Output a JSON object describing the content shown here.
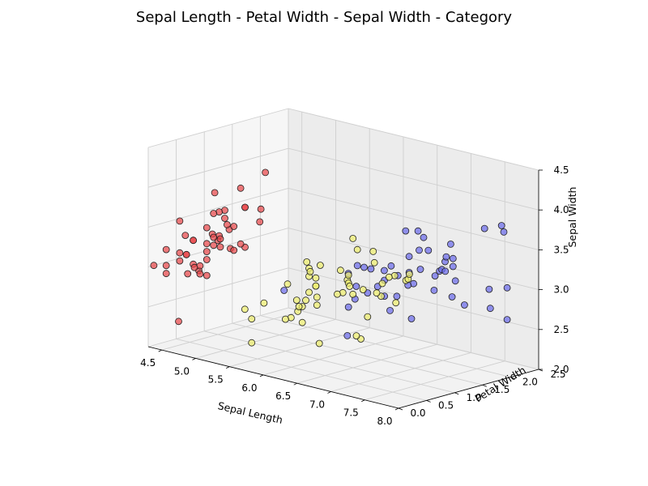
{
  "chart_data": {
    "type": "scatter3d",
    "title": "Sepal Length - Petal Width - Sepal Width - Category",
    "xlabel": "Sepal Length",
    "ylabel": "Petal Width",
    "zlabel": "Sepal Width",
    "xlim": [
      4.3,
      8.0
    ],
    "ylim": [
      0.0,
      2.5
    ],
    "zlim": [
      2.0,
      4.5
    ],
    "xticks": [
      "4.5",
      "5.0",
      "5.5",
      "6.0",
      "6.5",
      "7.0",
      "7.5",
      "8.0"
    ],
    "yticks": [
      "0.0",
      "0.5",
      "1.0",
      "1.5",
      "2.0",
      "2.5"
    ],
    "zticks": [
      "2.0",
      "2.5",
      "3.0",
      "3.5",
      "4.0",
      "4.5"
    ],
    "grid": true,
    "series": [
      {
        "color": "#e8474a",
        "points": [
          [
            5.1,
            0.2,
            3.5
          ],
          [
            4.9,
            0.2,
            3.0
          ],
          [
            4.7,
            0.2,
            3.2
          ],
          [
            4.6,
            0.2,
            3.1
          ],
          [
            5.0,
            0.2,
            3.6
          ],
          [
            5.4,
            0.4,
            3.9
          ],
          [
            4.6,
            0.3,
            3.4
          ],
          [
            5.0,
            0.2,
            3.4
          ],
          [
            4.4,
            0.2,
            2.9
          ],
          [
            4.9,
            0.1,
            3.1
          ],
          [
            5.4,
            0.2,
            3.7
          ],
          [
            4.8,
            0.2,
            3.4
          ],
          [
            4.8,
            0.1,
            3.0
          ],
          [
            4.3,
            0.1,
            3.0
          ],
          [
            5.8,
            0.2,
            4.0
          ],
          [
            5.7,
            0.4,
            4.4
          ],
          [
            5.4,
            0.4,
            3.9
          ],
          [
            5.1,
            0.3,
            3.5
          ],
          [
            5.7,
            0.3,
            3.8
          ],
          [
            5.1,
            0.3,
            3.8
          ],
          [
            5.4,
            0.2,
            3.4
          ],
          [
            5.1,
            0.4,
            3.7
          ],
          [
            4.6,
            0.2,
            3.6
          ],
          [
            5.1,
            0.5,
            3.3
          ],
          [
            4.8,
            0.2,
            3.4
          ],
          [
            5.0,
            0.2,
            3.0
          ],
          [
            5.0,
            0.4,
            3.4
          ],
          [
            5.2,
            0.2,
            3.5
          ],
          [
            5.2,
            0.2,
            3.4
          ],
          [
            4.7,
            0.2,
            3.2
          ],
          [
            4.8,
            0.2,
            3.1
          ],
          [
            5.4,
            0.4,
            3.4
          ],
          [
            5.2,
            0.1,
            4.1
          ],
          [
            5.5,
            0.2,
            4.2
          ],
          [
            4.9,
            0.2,
            3.1
          ],
          [
            5.0,
            0.2,
            3.2
          ],
          [
            5.5,
            0.2,
            3.5
          ],
          [
            4.4,
            0.2,
            3.0
          ],
          [
            5.1,
            0.2,
            3.4
          ],
          [
            5.0,
            0.3,
            3.5
          ],
          [
            4.5,
            0.3,
            2.3
          ],
          [
            4.4,
            0.2,
            3.2
          ],
          [
            5.0,
            0.6,
            3.5
          ],
          [
            5.1,
            0.4,
            3.8
          ],
          [
            4.8,
            0.3,
            3.0
          ],
          [
            5.1,
            0.2,
            3.8
          ],
          [
            4.6,
            0.2,
            3.2
          ],
          [
            5.3,
            0.2,
            3.7
          ],
          [
            5.0,
            0.2,
            3.3
          ]
        ]
      },
      {
        "color": "#eeee6e",
        "points": [
          [
            7.0,
            1.4,
            3.2
          ],
          [
            6.4,
            1.5,
            3.2
          ],
          [
            6.9,
            1.5,
            3.1
          ],
          [
            5.5,
            1.3,
            2.3
          ],
          [
            6.5,
            1.5,
            2.8
          ],
          [
            5.7,
            1.3,
            2.8
          ],
          [
            6.3,
            1.6,
            3.3
          ],
          [
            4.9,
            1.0,
            2.4
          ],
          [
            6.6,
            1.3,
            2.9
          ],
          [
            5.2,
            1.4,
            2.7
          ],
          [
            5.0,
            1.0,
            2.0
          ],
          [
            5.9,
            1.5,
            3.0
          ],
          [
            6.0,
            1.0,
            2.2
          ],
          [
            6.1,
            1.4,
            2.9
          ],
          [
            5.6,
            1.3,
            2.9
          ],
          [
            6.7,
            1.4,
            3.1
          ],
          [
            5.6,
            1.5,
            3.0
          ],
          [
            5.8,
            1.0,
            2.7
          ],
          [
            6.2,
            1.5,
            2.2
          ],
          [
            5.6,
            1.1,
            2.5
          ],
          [
            5.9,
            1.8,
            3.2
          ],
          [
            6.1,
            1.3,
            2.8
          ],
          [
            6.3,
            1.5,
            2.5
          ],
          [
            6.1,
            1.2,
            2.8
          ],
          [
            6.4,
            1.3,
            2.9
          ],
          [
            6.6,
            1.4,
            3.0
          ],
          [
            6.8,
            1.4,
            2.8
          ],
          [
            6.7,
            1.7,
            3.0
          ],
          [
            6.0,
            1.5,
            2.9
          ],
          [
            5.7,
            1.0,
            2.6
          ],
          [
            5.5,
            1.1,
            2.4
          ],
          [
            5.5,
            1.0,
            2.4
          ],
          [
            5.8,
            1.2,
            2.7
          ],
          [
            6.0,
            1.6,
            2.7
          ],
          [
            5.4,
            1.5,
            3.0
          ],
          [
            6.0,
            1.6,
            3.4
          ],
          [
            6.7,
            1.5,
            3.1
          ],
          [
            6.3,
            1.3,
            2.3
          ],
          [
            5.6,
            1.3,
            3.0
          ],
          [
            5.5,
            1.3,
            2.5
          ],
          [
            5.5,
            1.2,
            2.6
          ],
          [
            6.1,
            1.4,
            3.0
          ],
          [
            5.8,
            1.2,
            2.6
          ],
          [
            5.0,
            1.0,
            2.3
          ],
          [
            5.6,
            1.3,
            2.7
          ],
          [
            5.7,
            1.2,
            3.0
          ],
          [
            5.7,
            1.3,
            2.9
          ],
          [
            6.2,
            1.3,
            2.9
          ],
          [
            5.1,
            1.1,
            2.5
          ],
          [
            5.7,
            1.3,
            2.8
          ]
        ]
      },
      {
        "color": "#6b6bea",
        "points": [
          [
            6.3,
            2.5,
            3.3
          ],
          [
            5.8,
            1.9,
            2.7
          ],
          [
            7.1,
            2.1,
            3.0
          ],
          [
            6.3,
            1.8,
            2.9
          ],
          [
            6.5,
            2.2,
            3.0
          ],
          [
            7.6,
            2.1,
            3.0
          ],
          [
            4.9,
            1.7,
            2.5
          ],
          [
            7.3,
            1.8,
            2.9
          ],
          [
            6.7,
            1.8,
            2.5
          ],
          [
            7.2,
            2.5,
            3.6
          ],
          [
            6.5,
            2.0,
            3.2
          ],
          [
            6.4,
            1.9,
            2.7
          ],
          [
            6.8,
            2.1,
            3.0
          ],
          [
            5.7,
            2.0,
            2.5
          ],
          [
            5.8,
            2.4,
            2.8
          ],
          [
            6.4,
            2.3,
            3.2
          ],
          [
            6.5,
            1.8,
            3.0
          ],
          [
            7.7,
            2.2,
            3.8
          ],
          [
            7.7,
            2.3,
            2.6
          ],
          [
            6.0,
            1.5,
            2.2
          ],
          [
            6.9,
            2.3,
            3.2
          ],
          [
            5.6,
            2.0,
            2.8
          ],
          [
            7.7,
            2.0,
            2.8
          ],
          [
            6.3,
            1.8,
            2.7
          ],
          [
            6.7,
            2.1,
            3.3
          ],
          [
            7.2,
            1.8,
            3.2
          ],
          [
            6.2,
            1.8,
            2.8
          ],
          [
            6.1,
            1.8,
            3.0
          ],
          [
            6.4,
            2.1,
            2.8
          ],
          [
            7.2,
            1.6,
            3.0
          ],
          [
            7.4,
            1.9,
            2.8
          ],
          [
            7.9,
            2.0,
            3.8
          ],
          [
            6.4,
            2.2,
            2.8
          ],
          [
            6.3,
            1.5,
            2.8
          ],
          [
            6.1,
            1.4,
            2.6
          ],
          [
            7.7,
            2.3,
            3.0
          ],
          [
            6.3,
            2.4,
            3.4
          ],
          [
            6.4,
            1.8,
            3.1
          ],
          [
            6.0,
            1.8,
            3.0
          ],
          [
            6.9,
            2.1,
            3.1
          ],
          [
            6.7,
            2.4,
            3.1
          ],
          [
            6.9,
            2.3,
            3.1
          ],
          [
            6.8,
            2.3,
            3.2
          ],
          [
            6.7,
            2.5,
            3.3
          ],
          [
            6.7,
            2.3,
            3.0
          ],
          [
            6.3,
            1.9,
            2.5
          ],
          [
            6.5,
            2.0,
            3.0
          ],
          [
            6.2,
            2.3,
            3.4
          ],
          [
            5.9,
            1.8,
            3.0
          ]
        ]
      }
    ]
  }
}
